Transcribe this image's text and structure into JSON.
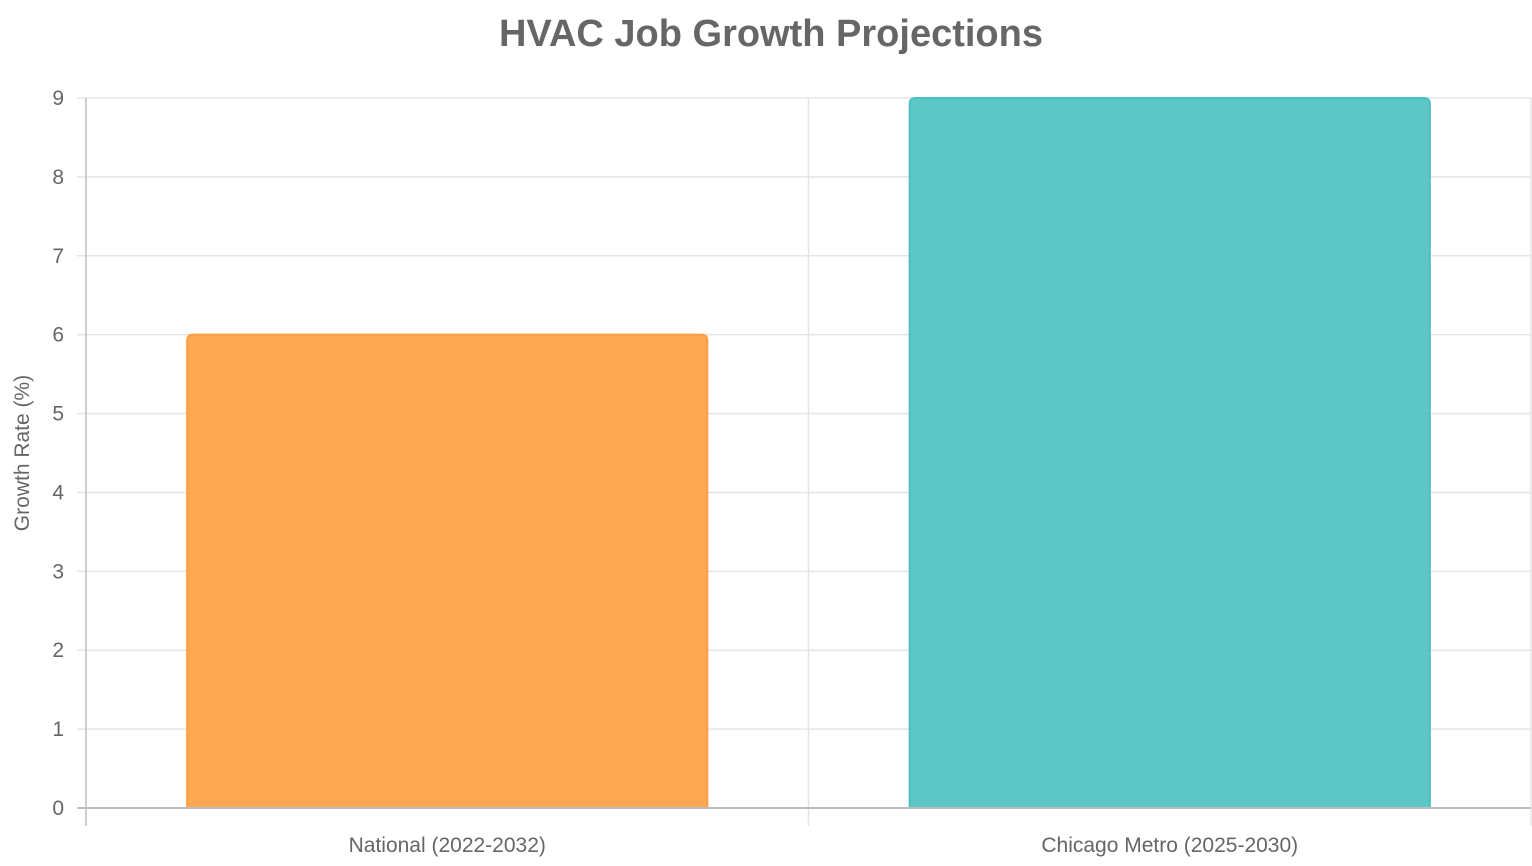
{
  "chart_data": {
    "type": "bar",
    "title": "HVAC Job Growth Projections",
    "xlabel": "",
    "ylabel": "Growth Rate (%)",
    "categories": [
      "National (2022-2032)",
      "Chicago Metro (2025-2030)"
    ],
    "values": [
      6,
      9
    ],
    "bar_colors": [
      "#FF9F40",
      "#4BC0C0"
    ],
    "bar_border_colors": [
      "#FF9F40",
      "#4BC0C0"
    ],
    "ylim": [
      0,
      9
    ],
    "yticks": [
      0,
      1,
      2,
      3,
      4,
      5,
      6,
      7,
      8,
      9
    ],
    "grid": true,
    "legend": "none"
  },
  "colors": {
    "text": "#666666",
    "grid": "#e5e5e5",
    "axis": "#bdbdbd"
  }
}
